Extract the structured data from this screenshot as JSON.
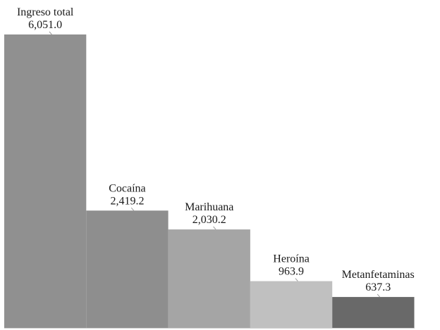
{
  "chart_data": {
    "type": "bar",
    "categories": [
      "Ingreso total",
      "Cocaína",
      "Marihuana",
      "Heroína",
      "Metanfetaminas"
    ],
    "values": [
      6051.0,
      2419.2,
      2030.2,
      963.9,
      637.3
    ],
    "value_labels": [
      "6,051.0",
      "2,419.2",
      "2,030.2",
      "963.9",
      "637.3"
    ],
    "colors": [
      "#909090",
      "#8e8e8e",
      "#a5a5a5",
      "#c0c0c0",
      "#696969"
    ],
    "title": "",
    "xlabel": "",
    "ylabel": "",
    "ylim": [
      0,
      6051.0
    ],
    "grid": false,
    "legend": "none",
    "bar_gap": 0
  }
}
